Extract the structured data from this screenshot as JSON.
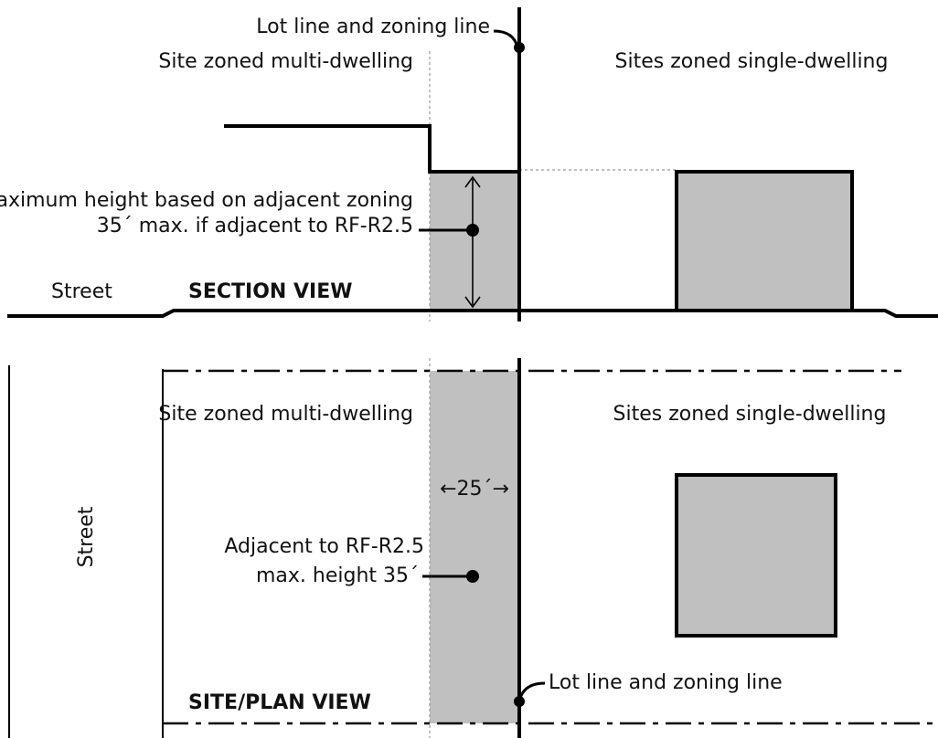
{
  "section": {
    "lot_line_label": "Lot line and zoning line",
    "multi_label": "Site zoned multi-dwelling",
    "single_label": "Sites zoned single-dwelling",
    "max_height_line1": "Maximum height based on adjacent zoning",
    "max_height_line2": "35´ max. if adjacent to RF-R2.5",
    "street_label": "Street",
    "view_label": "SECTION VIEW"
  },
  "plan": {
    "multi_label": "Site zoned multi-dwelling",
    "single_label": "Sites zoned single-dwelling",
    "dimension_label": "←25´→",
    "adjacent_line1": "Adjacent to RF-R2.5",
    "adjacent_line2": "max. height 35´",
    "lot_line_label": "Lot line and zoning line",
    "street_label": "Street",
    "view_label": "SITE/PLAN VIEW"
  },
  "colors": {
    "building_fill": "#c0c0c0",
    "line": "#000000",
    "guide": "#999999"
  }
}
